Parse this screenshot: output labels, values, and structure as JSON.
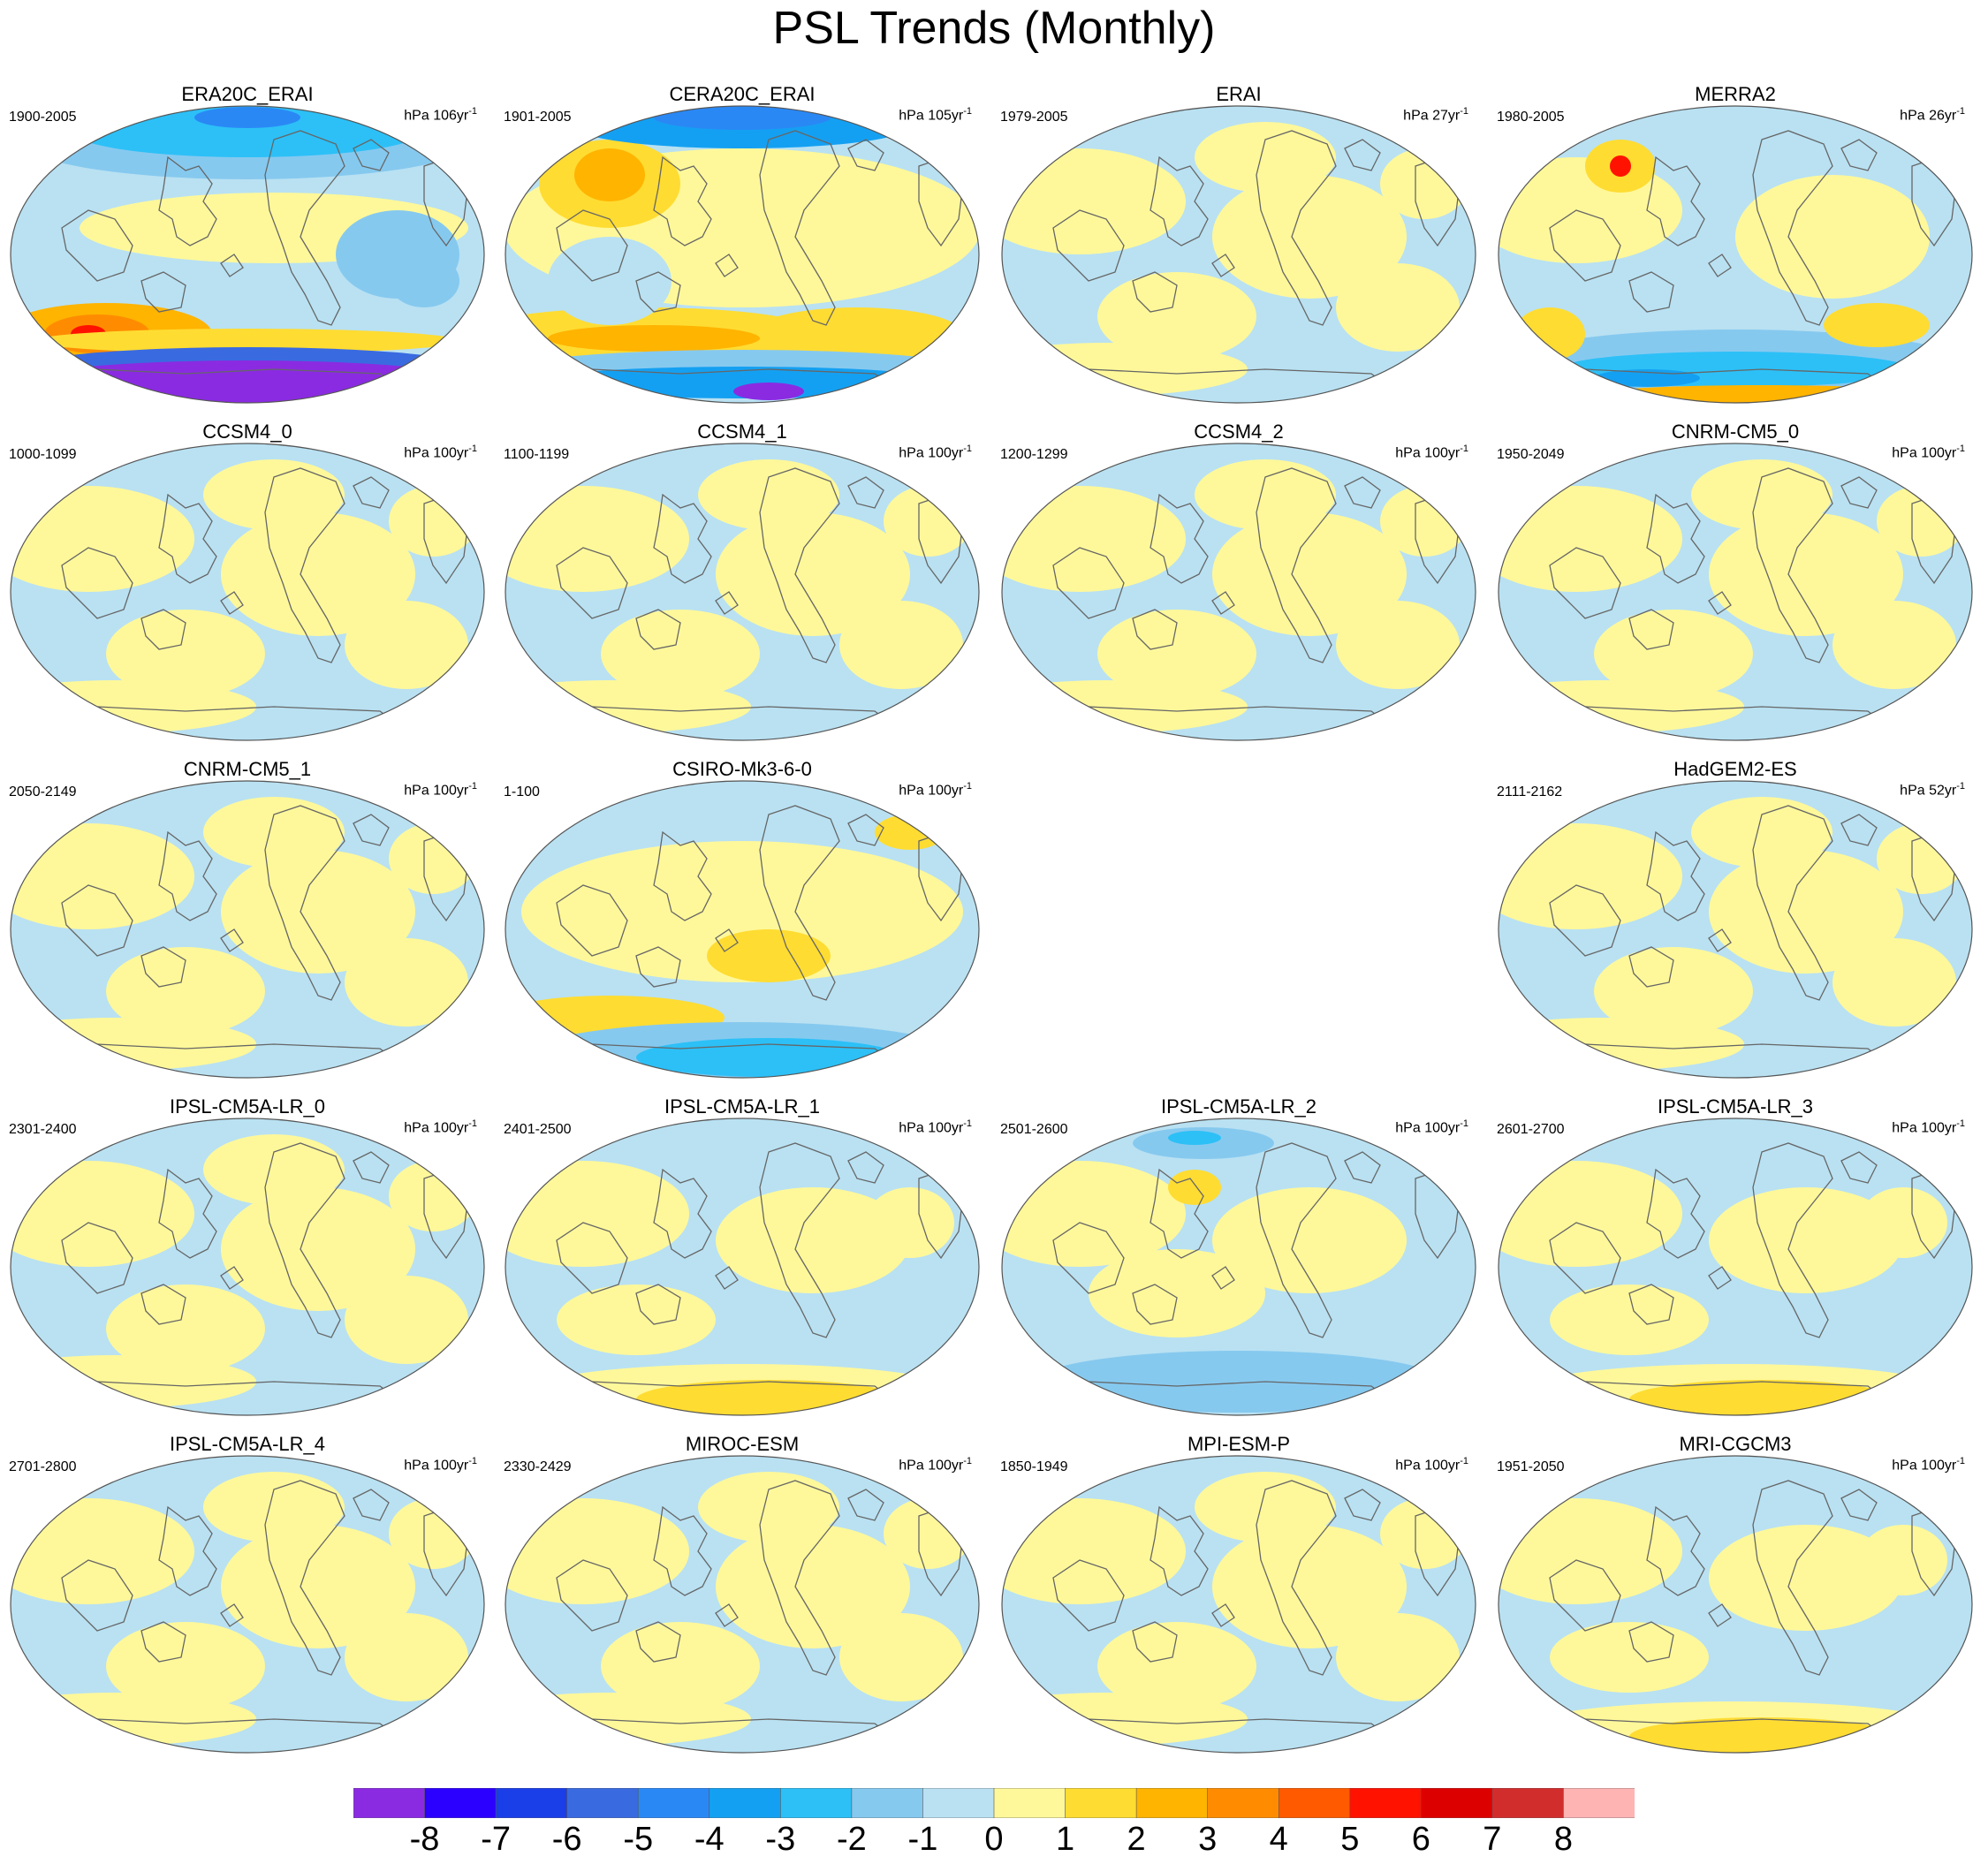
{
  "title": "PSL Trends (Monthly)",
  "panels": [
    {
      "name": "ERA20C_ERAI",
      "years": "1900-2005",
      "units": "hPa 106yr",
      "sup": "-1",
      "style": "era20c"
    },
    {
      "name": "CERA20C_ERAI",
      "years": "1901-2005",
      "units": "hPa 105yr",
      "sup": "-1",
      "style": "cera20c"
    },
    {
      "name": "ERAI",
      "years": "1979-2005",
      "units": "hPa 27yr",
      "sup": "-1",
      "style": "mild"
    },
    {
      "name": "MERRA2",
      "years": "1980-2005",
      "units": "hPa 26yr",
      "sup": "-1",
      "style": "merra"
    },
    {
      "name": "CCSM4_0",
      "years": "1000-1099",
      "units": "hPa 100yr",
      "sup": "-1",
      "style": "mild"
    },
    {
      "name": "CCSM4_1",
      "years": "1100-1199",
      "units": "hPa 100yr",
      "sup": "-1",
      "style": "mild"
    },
    {
      "name": "CCSM4_2",
      "years": "1200-1299",
      "units": "hPa 100yr",
      "sup": "-1",
      "style": "mild"
    },
    {
      "name": "CNRM-CM5_0",
      "years": "1950-2049",
      "units": "hPa 100yr",
      "sup": "-1",
      "style": "mild"
    },
    {
      "name": "CNRM-CM5_1",
      "years": "2050-2149",
      "units": "hPa 100yr",
      "sup": "-1",
      "style": "mild"
    },
    {
      "name": "CSIRO-Mk3-6-0",
      "years": "1-100",
      "units": "hPa 100yr",
      "sup": "-1",
      "style": "csiro"
    },
    null,
    {
      "name": "HadGEM2-ES",
      "years": "2111-2162",
      "units": "hPa 52yr",
      "sup": "-1",
      "style": "mild"
    },
    {
      "name": "IPSL-CM5A-LR_0",
      "years": "2301-2400",
      "units": "hPa 100yr",
      "sup": "-1",
      "style": "mild"
    },
    {
      "name": "IPSL-CM5A-LR_1",
      "years": "2401-2500",
      "units": "hPa 100yr",
      "sup": "-1",
      "style": "southyellow"
    },
    {
      "name": "IPSL-CM5A-LR_2",
      "years": "2501-2600",
      "units": "hPa 100yr",
      "sup": "-1",
      "style": "southblue"
    },
    {
      "name": "IPSL-CM5A-LR_3",
      "years": "2601-2700",
      "units": "hPa 100yr",
      "sup": "-1",
      "style": "southyellow"
    },
    {
      "name": "IPSL-CM5A-LR_4",
      "years": "2701-2800",
      "units": "hPa 100yr",
      "sup": "-1",
      "style": "mild"
    },
    {
      "name": "MIROC-ESM",
      "years": "2330-2429",
      "units": "hPa 100yr",
      "sup": "-1",
      "style": "mild"
    },
    {
      "name": "MPI-ESM-P",
      "years": "1850-1949",
      "units": "hPa 100yr",
      "sup": "-1",
      "style": "mild"
    },
    {
      "name": "MRI-CGCM3",
      "years": "1951-2050",
      "units": "hPa 100yr",
      "sup": "-1",
      "style": "southyellow"
    }
  ],
  "colorbar": {
    "colors": [
      "#8a2be2",
      "#2b00ff",
      "#1a3ee8",
      "#3a6ae0",
      "#2a88f5",
      "#14a0f2",
      "#2cc0f7",
      "#86c9ef",
      "#b9e1f2",
      "#fff89a",
      "#ffdc32",
      "#ffb400",
      "#ff8c00",
      "#ff5a00",
      "#ff1200",
      "#dc0000",
      "#d22d2d",
      "#ffb4b4"
    ],
    "labels": [
      "-8",
      "-7",
      "-6",
      "-5",
      "-4",
      "-3",
      "-2",
      "-1",
      "0",
      "1",
      "2",
      "3",
      "4",
      "5",
      "6",
      "7",
      "8"
    ]
  }
}
